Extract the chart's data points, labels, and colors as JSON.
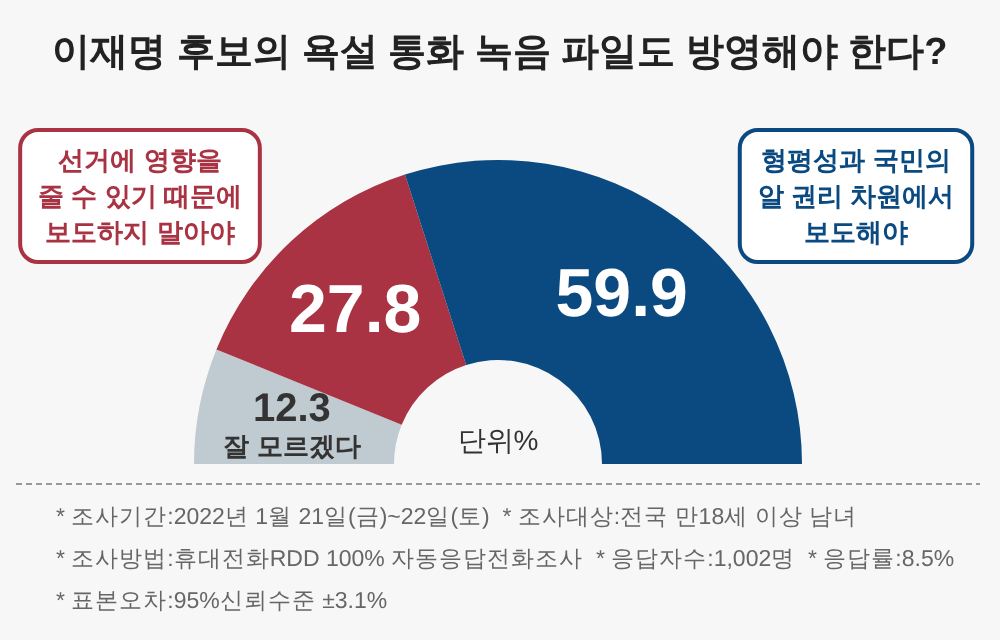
{
  "chart_data": {
    "type": "donut",
    "title": "이재명 후보의 욕설 통화 녹음 파일도 방영해야 한다?",
    "categories": [
      "잘 모르겠다",
      "선거에 영향을\n줄 수 있기 때문에\n보도하지 말아야",
      "형평성과 국민의\n알 권리 차원에서\n보도해야"
    ],
    "values": [
      12.3,
      27.8,
      59.9
    ],
    "colors": [
      "#c0cad1",
      "#a93342",
      "#0b4a80"
    ],
    "data_labels": true,
    "annotations": [
      "단위%",
      "* 조사기간:2022년 1월 21일(금)~22일(토)  * 조사대상:전국 만18세 이상 남녀",
      "* 조사방법:휴대전화RDD 100% 자동응답전화조사  * 응답자수:1,002명  * 응답률:8.5%",
      "* 표본오차:95%신뢰수준 ±3.1%"
    ]
  }
}
